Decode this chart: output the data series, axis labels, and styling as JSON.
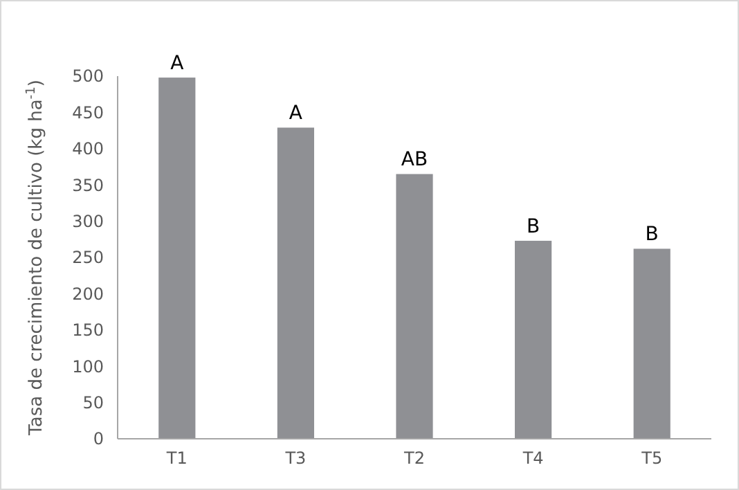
{
  "chart_data": {
    "type": "bar",
    "ylabel": "Tasa de crecimiento de cultivo (kg ha$^{-1}$)",
    "categories": [
      "T1",
      "T3",
      "T2",
      "T4",
      "T5"
    ],
    "values": [
      498,
      429,
      365,
      273,
      262
    ],
    "color": "#8f9094",
    "ylim": [
      0,
      500
    ],
    "yticks": [
      0,
      50,
      100,
      150,
      200,
      250,
      300,
      350,
      400,
      450,
      500
    ],
    "grid": false,
    "annotations": [
      {
        "text": "A",
        "x": "T1",
        "y": 498
      },
      {
        "text": "A",
        "x": "T3",
        "y": 429
      },
      {
        "text": "AB",
        "x": "T2",
        "y": 365
      },
      {
        "text": "B",
        "x": "T4",
        "y": 273
      },
      {
        "text": "B",
        "x": "T5",
        "y": 262
      }
    ]
  }
}
